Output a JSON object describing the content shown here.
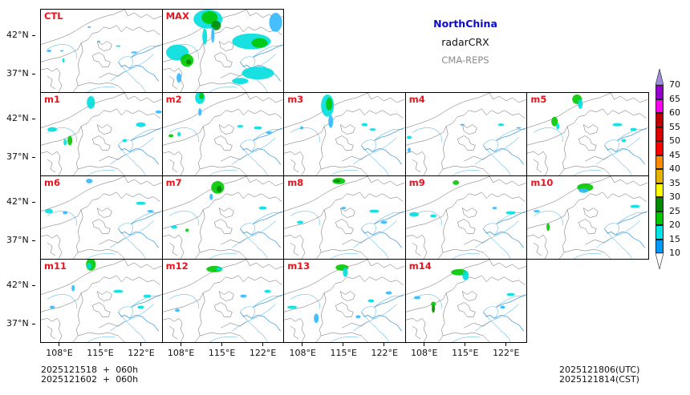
{
  "header": {
    "region": "NorthChina",
    "product": "radarCRX",
    "model": "CMA-REPS",
    "region_color": "#0a0ad2",
    "model_color": "#8a8a8a"
  },
  "panels": [
    {
      "label": "CTL",
      "row": 0,
      "col": 0,
      "echo": "light"
    },
    {
      "label": "MAX",
      "row": 0,
      "col": 1,
      "echo": "max"
    },
    {
      "label": "m1",
      "row": 1,
      "col": 0,
      "echo": "m1"
    },
    {
      "label": "m2",
      "row": 1,
      "col": 1,
      "echo": "m2"
    },
    {
      "label": "m3",
      "row": 1,
      "col": 2,
      "echo": "m3"
    },
    {
      "label": "m4",
      "row": 1,
      "col": 3,
      "echo": "m4"
    },
    {
      "label": "m5",
      "row": 1,
      "col": 4,
      "echo": "m5"
    },
    {
      "label": "m6",
      "row": 2,
      "col": 0,
      "echo": "m6"
    },
    {
      "label": "m7",
      "row": 2,
      "col": 1,
      "echo": "m7"
    },
    {
      "label": "m8",
      "row": 2,
      "col": 2,
      "echo": "m8"
    },
    {
      "label": "m9",
      "row": 2,
      "col": 3,
      "echo": "m9"
    },
    {
      "label": "m10",
      "row": 2,
      "col": 4,
      "echo": "m10"
    },
    {
      "label": "m11",
      "row": 3,
      "col": 0,
      "echo": "m11"
    },
    {
      "label": "m12",
      "row": 3,
      "col": 1,
      "echo": "m12"
    },
    {
      "label": "m13",
      "row": 3,
      "col": 2,
      "echo": "m13"
    },
    {
      "label": "m14",
      "row": 3,
      "col": 3,
      "echo": "m14"
    }
  ],
  "axes": {
    "y_ticks": [
      "42°N",
      "37°N"
    ],
    "x_ticks": [
      "108°E",
      "115°E",
      "122°E"
    ]
  },
  "footer": {
    "init_line1": "2025121518  +  060h",
    "init_line2": "2025121602  +  060h",
    "valid_utc": "2025121806(UTC)",
    "valid_cst": "2025121814(CST)"
  },
  "colorbar": {
    "labels": [
      "70",
      "65",
      "60",
      "55",
      "50",
      "45",
      "40",
      "35",
      "30",
      "25",
      "20",
      "15",
      "10"
    ],
    "colors": [
      "#9400cc",
      "#ff00f0",
      "#c00000",
      "#dc0000",
      "#ff0000",
      "#ff8c00",
      "#e6b400",
      "#ffff00",
      "#008c00",
      "#00c800",
      "#00e6e6",
      "#009bff"
    ],
    "over_color": "#a08cdc",
    "under_color": "#ffffff"
  }
}
